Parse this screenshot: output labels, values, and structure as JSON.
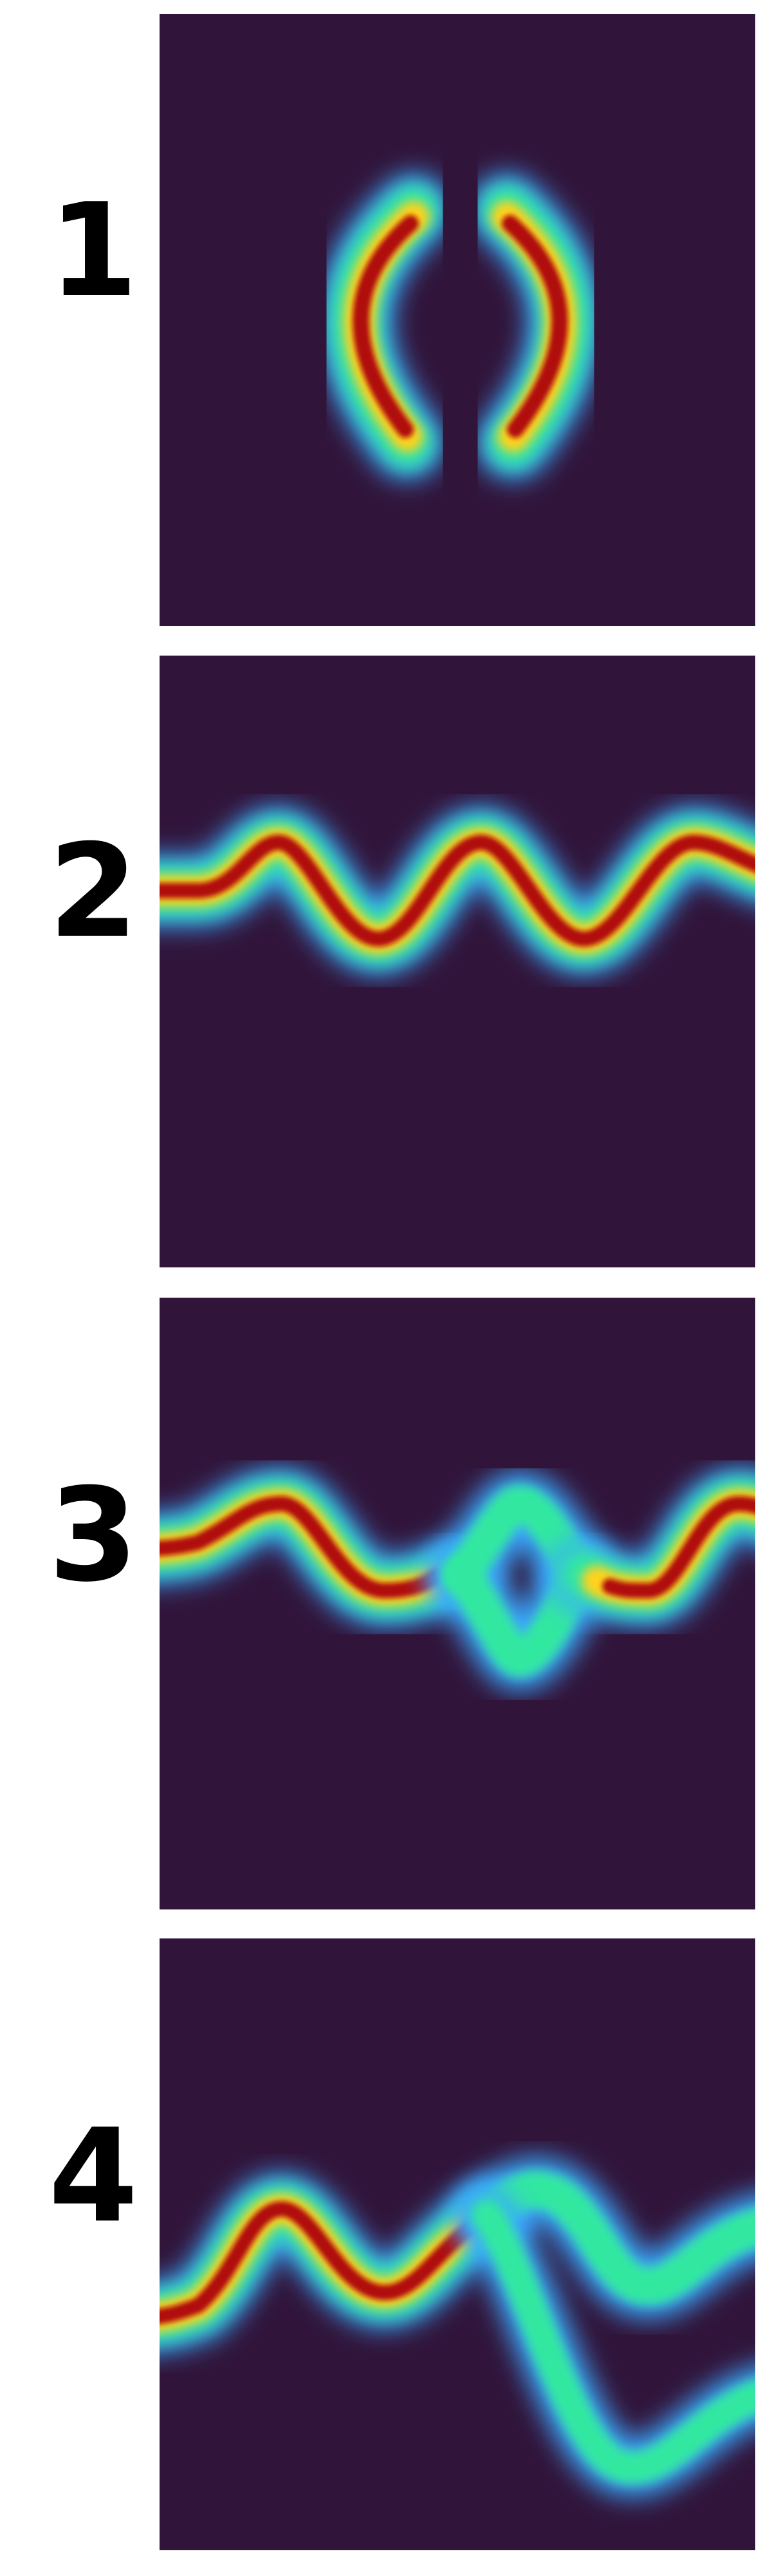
{
  "panels": [
    {
      "label": "1",
      "pattern": "two-crescents"
    },
    {
      "label": "2",
      "pattern": "single-sinusoidal-band"
    },
    {
      "label": "3",
      "pattern": "band-splitting-into-loop-then-rejoining"
    },
    {
      "label": "4",
      "pattern": "band-splitting-into-two-diverging-branches"
    }
  ],
  "colors": {
    "background": "#31143a",
    "outer_glow": "#3aa9ff",
    "mid": "#33e8a0",
    "hot": "#ffd21c",
    "core": "#b00f0f"
  },
  "colormap": "turbo-like"
}
